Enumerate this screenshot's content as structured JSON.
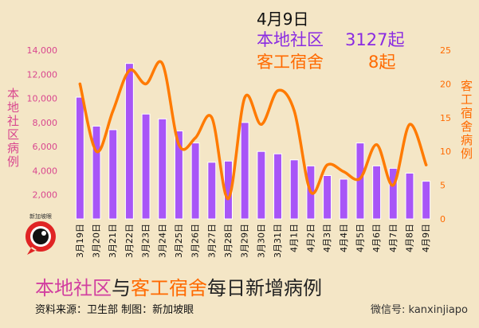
{
  "header": {
    "date": "4月9日",
    "line1_label": "本地社区",
    "line1_value": "3127起",
    "line2_label": "客工宿舍",
    "line2_value": "8起"
  },
  "left_axis_title": "本地社区病例",
  "right_axis_title": "客工宿舍病例",
  "footer": {
    "title_part1": "本地社区",
    "title_part2": "与",
    "title_part3": "客工宿舍",
    "title_part4": "每日新增病例",
    "source": "资料来源：卫生部    制图：新加坡眼"
  },
  "watermark": "微信号: kanxinjiapo",
  "logo_text": "新加坡眼",
  "colors": {
    "bar": "#a855f7",
    "line": "#ff7a00",
    "background": "#f4e6c6",
    "left_axis_text": "#d9478f",
    "right_axis_text": "#ff6a00"
  },
  "chart_data": {
    "type": "bar",
    "categories": [
      "3月19日",
      "3月20日",
      "3月21日",
      "3月22日",
      "3月23日",
      "3月24日",
      "3月25日",
      "3月26日",
      "3月27日",
      "3月28日",
      "3月29日",
      "3月30日",
      "3月31日",
      "4月1日",
      "4月2日",
      "4月3日",
      "4月4日",
      "4月5日",
      "4月6日",
      "4月7日",
      "4月8日",
      "4月9日"
    ],
    "series": [
      {
        "name": "本地社区",
        "axis": "left",
        "type": "bar",
        "values": [
          10100,
          7700,
          7400,
          12900,
          8700,
          8300,
          7300,
          6300,
          4700,
          4800,
          8000,
          5600,
          5400,
          4900,
          4400,
          3600,
          3300,
          6300,
          4400,
          4200,
          3800,
          3127
        ]
      },
      {
        "name": "客工宿舍",
        "axis": "right",
        "type": "line",
        "values": [
          20,
          10,
          16,
          22,
          20,
          23,
          11,
          12,
          15,
          3,
          18,
          14,
          19,
          16,
          4,
          8,
          7,
          6,
          11,
          5,
          14,
          8
        ]
      }
    ],
    "left_axis": {
      "ylim": [
        0,
        14000
      ],
      "ticks": [
        "2,000",
        "4,000",
        "6,000",
        "8,000",
        "10,000",
        "12,000",
        "14,000"
      ],
      "tick_values": [
        2000,
        4000,
        6000,
        8000,
        10000,
        12000,
        14000
      ]
    },
    "right_axis": {
      "ylim": [
        0,
        25
      ],
      "ticks": [
        "0",
        "5",
        "10",
        "15",
        "20",
        "25"
      ],
      "tick_values": [
        0,
        5,
        10,
        15,
        20,
        25
      ]
    },
    "grid": false,
    "legend": "none"
  }
}
